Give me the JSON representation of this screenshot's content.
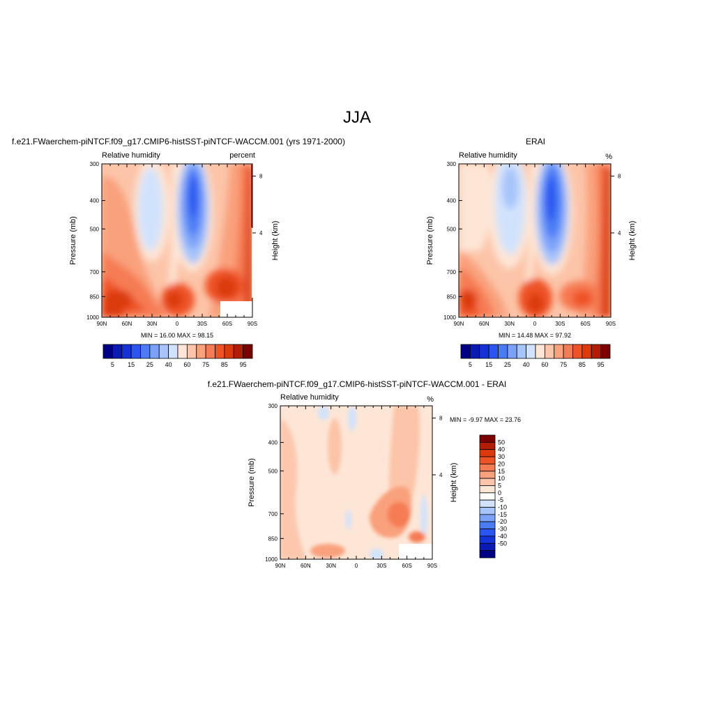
{
  "page_title": "JJA",
  "panels": [
    {
      "title": "f.e21.FWaerchem-piNTCF.f09_g17.CMIP6-histSST-piNTCF-WACCM.001 (yrs 1971-2000)",
      "left_label": "Relative humidity",
      "right_label": "percent",
      "ylabel": "Pressure (mb)",
      "y2label": "Height (km)",
      "stats": "MIN =  16.00  MAX =  98.15"
    },
    {
      "title": "ERAI",
      "left_label": "Relative humidity",
      "right_label": "%",
      "ylabel": "Pressure (mb)",
      "y2label": "Height (km)",
      "stats": "MIN =  14.48  MAX =  97.92"
    },
    {
      "title": "f.e21.FWaerchem-piNTCF.f09_g17.CMIP6-histSST-piNTCF-WACCM.001 - ERAI",
      "left_label": "Relative humidity",
      "right_label": "%",
      "ylabel": "Pressure (mb)",
      "y2label": "Height (km)",
      "stats": "MIN =  -9.97  MAX =  23.76"
    }
  ],
  "chart_data": [
    {
      "type": "heatmap",
      "x_ticks": [
        "90N",
        "60N",
        "30N",
        "0",
        "30S",
        "60S",
        "90S"
      ],
      "y_ticks": [
        "300",
        "400",
        "500",
        "700",
        "850",
        "1000"
      ],
      "y_tick_values": [
        300,
        400,
        500,
        700,
        850,
        1000
      ],
      "y2_ticks": [
        "8",
        "4"
      ],
      "ylim": [
        1000,
        300
      ],
      "min": 16.0,
      "max": 98.15,
      "colorbar_labels": [
        "5",
        "15",
        "25",
        "40",
        "60",
        "75",
        "85",
        "95"
      ],
      "colorbar_colors": [
        "#000085",
        "#0a1ab4",
        "#1432d7",
        "#2a55f0",
        "#4a7cf5",
        "#7ba1f8",
        "#a7c5fa",
        "#d1e3fc",
        "#fde6d6",
        "#fcc4a8",
        "#f9a07c",
        "#f57c52",
        "#ee5326",
        "#dc3a0d",
        "#b21e05",
        "#7d0000"
      ]
    },
    {
      "type": "heatmap",
      "x_ticks": [
        "90N",
        "60N",
        "30N",
        "0",
        "30S",
        "60S",
        "90S"
      ],
      "y_ticks": [
        "300",
        "400",
        "500",
        "700",
        "850",
        "1000"
      ],
      "y_tick_values": [
        300,
        400,
        500,
        700,
        850,
        1000
      ],
      "y2_ticks": [
        "8",
        "4"
      ],
      "ylim": [
        1000,
        300
      ],
      "min": 14.48,
      "max": 97.92,
      "colorbar_labels": [
        "5",
        "15",
        "25",
        "40",
        "60",
        "75",
        "85",
        "95"
      ],
      "colorbar_colors": [
        "#000085",
        "#0a1ab4",
        "#1432d7",
        "#2a55f0",
        "#4a7cf5",
        "#7ba1f8",
        "#a7c5fa",
        "#d1e3fc",
        "#fde6d6",
        "#fcc4a8",
        "#f9a07c",
        "#f57c52",
        "#ee5326",
        "#dc3a0d",
        "#b21e05",
        "#7d0000"
      ]
    },
    {
      "type": "heatmap",
      "x_ticks": [
        "90N",
        "60N",
        "30N",
        "0",
        "30S",
        "60S",
        "90S"
      ],
      "y_ticks": [
        "300",
        "400",
        "500",
        "700",
        "850",
        "1000"
      ],
      "y_tick_values": [
        300,
        400,
        500,
        700,
        850,
        1000
      ],
      "y2_ticks": [
        "8",
        "4"
      ],
      "ylim": [
        1000,
        300
      ],
      "min": -9.97,
      "max": 23.76,
      "colorbar_labels": [
        "50",
        "40",
        "30",
        "20",
        "15",
        "10",
        "5",
        "0",
        "-5",
        "-10",
        "-15",
        "-20",
        "-30",
        "-40",
        "-50"
      ],
      "colorbar_colors": [
        "#7d0000",
        "#b21e05",
        "#dc3a0d",
        "#ee5326",
        "#f57c52",
        "#f9a07c",
        "#fcc4a8",
        "#fde6d6",
        "#ffffff",
        "#d1e3fc",
        "#a7c5fa",
        "#7ba1f8",
        "#4a7cf5",
        "#2a55f0",
        "#1432d7",
        "#0a1ab4",
        "#000085"
      ]
    }
  ]
}
